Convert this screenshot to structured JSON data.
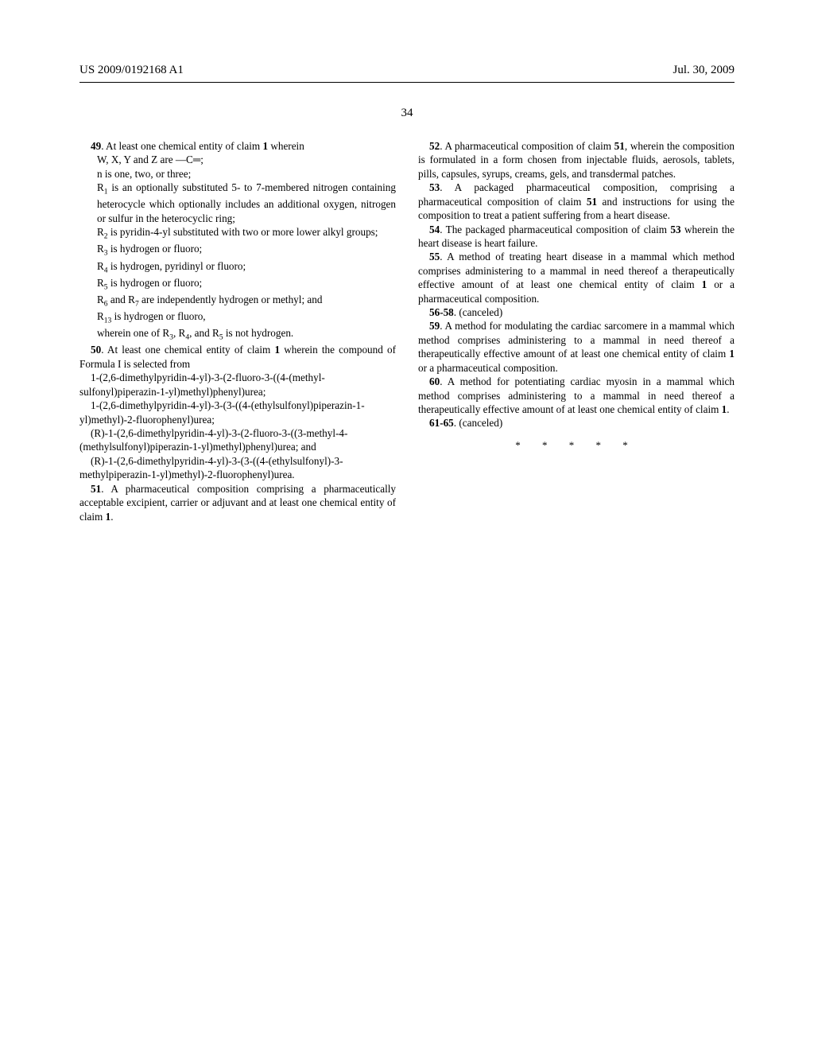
{
  "header": {
    "pub": "US 2009/0192168 A1",
    "date": "Jul. 30, 2009"
  },
  "page_number": "34",
  "left": {
    "c49": {
      "num": "49",
      "lead": ". At least one chemical entity of claim ",
      "claimref": "1",
      "tail": " wherein",
      "l1": "W, X, Y and Z are —C═;",
      "l2": "n is one, two, or three;",
      "l3a": "R",
      "l3b": " is an optionally substituted 5- to 7-membered nitrogen containing heterocycle which optionally includes an additional oxygen, nitrogen or sulfur in the heterocyclic ring;",
      "l4a": "R",
      "l4b": " is pyridin-4-yl substituted with two or more lower alkyl groups;",
      "l5a": "R",
      "l5b": " is hydrogen or fluoro;",
      "l6a": "R",
      "l6b": " is hydrogen, pyridinyl or fluoro;",
      "l7a": "R",
      "l7b": " is hydrogen or fluoro;",
      "l8a": "R",
      "l8b": " and R",
      "l8c": " are independently hydrogen or methyl; and",
      "l9a": "R",
      "l9b": " is hydrogen or fluoro,",
      "l10a": "wherein one of R",
      "l10b": ", R",
      "l10c": ", and R",
      "l10d": " is not hydrogen."
    },
    "c50": {
      "num": "50",
      "lead": ". At least one chemical entity of claim ",
      "claimref": "1",
      "tail": " wherein the compound of Formula I is selected from",
      "i1": "1-(2,6-dimethylpyridin-4-yl)-3-(2-fluoro-3-((4-(methyl­sulfonyl)piperazin-1-yl)methyl)phenyl)urea;",
      "i2": "1-(2,6-dimethylpyridin-4-yl)-3-(3-((4-(ethylsulfonyl)pip­erazin-1-yl)methyl)-2-fluorophenyl)urea;",
      "i3": "(R)-1-(2,6-dimethylpyridin-4-yl)-3-(2-fluoro-3-((3-me­thyl-4-(methylsulfonyl)piperazin-1-yl)methyl)phenyl)urea; and",
      "i4": "(R)-1-(2,6-dimethylpyridin-4-yl)-3-(3-((4-(ethylsulfo­nyl)-3-methylpiperazin-1-yl)methyl)-2-fluorophenyl)urea."
    },
    "c51": {
      "num": "51",
      "txt": ". A pharmaceutical composition comprising a pharma­ceutically acceptable excipient, carrier or adjuvant and at least one chemical entity of claim ",
      "claimref": "1",
      "end": "."
    }
  },
  "right": {
    "c52": {
      "num": "52",
      "lead": ". A pharmaceutical composition of claim ",
      "ref": "51",
      "tail": ", wherein the composition is formulated in a form chosen from injectable fluids, aerosols, tablets, pills, capsules, syrups, creams, gels, and transdermal patches."
    },
    "c53": {
      "num": "53",
      "lead": ". A packaged pharmaceutical composition, comprising a pharmaceutical composition of claim ",
      "ref": "51",
      "tail": " and instructions for using the composition to treat a patient suffering from a heart disease."
    },
    "c54": {
      "num": "54",
      "lead": ". The packaged pharmaceutical composition of claim ",
      "ref": "53",
      "tail": " wherein the heart disease is heart failure."
    },
    "c55": {
      "num": "55",
      "lead": ". A method of treating heart disease in a mammal which method comprises administering to a mammal in need thereof a therapeutically effective amount of at least one chemical entity of claim ",
      "ref": "1",
      "tail": " or a pharmaceutical composition."
    },
    "c56": {
      "num": "56-58",
      "txt": ". (canceled)"
    },
    "c59": {
      "num": "59",
      "lead": ". A method for modulating the cardiac sarcomere in a mammal which method comprises administering to a mam­mal in need thereof a therapeutically effective amount of at least one chemical entity of claim ",
      "ref": "1",
      "tail": " or a pharmaceutical composition."
    },
    "c60": {
      "num": "60",
      "lead": ". A method for potentiating cardiac myosin in a mammal which method comprises administering to a mammal in need thereof a therapeutically effective amount of at least one chemical entity of claim ",
      "ref": "1",
      "tail": "."
    },
    "c61": {
      "num": "61-65",
      "txt": ". (canceled)"
    }
  },
  "stars": "* * * * *"
}
